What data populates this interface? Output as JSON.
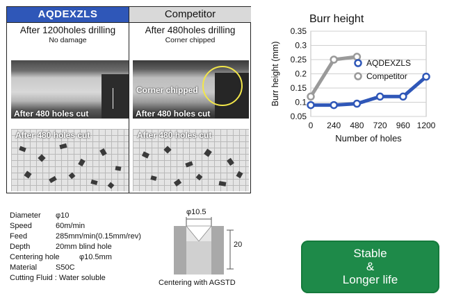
{
  "table": {
    "left_header": "AQDEXZLS",
    "right_header": "Competitor",
    "left_title": "After 1200holes drilling",
    "left_note": "No damage",
    "right_title": "After 480holes drilling",
    "right_note": "Corner chipped",
    "drill_left_label": "After 480 holes cut",
    "drill_right_label": "After 480 holes cut",
    "corner_label": "Corner chipped",
    "chips_left_label": "After 480 holes cut",
    "chips_right_label": "After 480 holes cut"
  },
  "chart_data": {
    "type": "line",
    "title": "Burr height",
    "xlabel": "Number of holes",
    "ylabel": "Burr height (mm)",
    "x_ticks": [
      0,
      240,
      480,
      720,
      960,
      1200
    ],
    "y_ticks": [
      "0.05",
      "0.1",
      "0.15",
      "0.2",
      "0.25",
      "0.3",
      "0.35"
    ],
    "xlim": [
      0,
      1200
    ],
    "ylim": [
      0.05,
      0.35
    ],
    "grid": true,
    "legend_position": "inside-right",
    "series": [
      {
        "name": "AQDEXZLS",
        "color": "#2f57b8",
        "points": [
          [
            0,
            0.09
          ],
          [
            240,
            0.09
          ],
          [
            480,
            0.095
          ],
          [
            720,
            0.12
          ],
          [
            960,
            0.12
          ],
          [
            1200,
            0.19
          ]
        ]
      },
      {
        "name": "Competitor",
        "color": "#9a9a9a",
        "points": [
          [
            0,
            0.12
          ],
          [
            240,
            0.25
          ],
          [
            480,
            0.26
          ]
        ]
      }
    ]
  },
  "conditions": {
    "rows": [
      {
        "label": "Diameter",
        "value": "φ10"
      },
      {
        "label": "Speed",
        "value": "60m/min"
      },
      {
        "label": "Feed",
        "value": "285mm/min(0.15mm/rev)"
      },
      {
        "label": "Depth",
        "value": "20mm blind hole"
      },
      {
        "label": "Centering hole",
        "value": "φ10.5mm"
      },
      {
        "label": "Material",
        "value": "S50C"
      }
    ],
    "fluid": "Cutting Fluid : Water soluble"
  },
  "diagram": {
    "top_dim": "φ10.5",
    "side_dim": "20",
    "caption": "Centering with AGSTD"
  },
  "badge": {
    "line1": "Stable",
    "line2": "&",
    "line3": "Longer life"
  },
  "colors": {
    "aqdex": "#2f57b8",
    "competitor": "#9a9a9a",
    "badge": "#1e8a49"
  }
}
